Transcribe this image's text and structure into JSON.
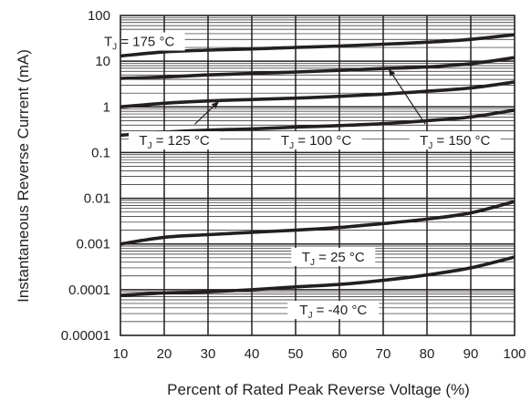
{
  "chart_data": {
    "type": "line",
    "title": "",
    "xlabel": "Percent of Rated Peak Reverse Voltage (%)",
    "ylabel": "Instantaneous Reverse Current (mA)",
    "xlim": [
      10,
      100
    ],
    "ylim": [
      1e-05,
      100
    ],
    "y_scale": "log",
    "grid": true,
    "x_ticks": [
      "10",
      "20",
      "30",
      "40",
      "50",
      "60",
      "70",
      "80",
      "90",
      "100"
    ],
    "y_ticks": [
      "0.00001",
      "0.0001",
      "0.001",
      "0.01",
      "0.1",
      "1",
      "10",
      "100"
    ],
    "x": [
      10,
      20,
      30,
      40,
      50,
      60,
      70,
      80,
      90,
      100
    ],
    "series": [
      {
        "label_main": "T",
        "label_sub": "J",
        "label_rest": " = 175 °C",
        "values": [
          13,
          16,
          17.5,
          18.5,
          20,
          21.5,
          23.5,
          26,
          30,
          38
        ]
      },
      {
        "label_main": "T",
        "label_sub": "J",
        "label_rest": " = 150 °C",
        "values": [
          4.2,
          4.5,
          5,
          5.4,
          5.8,
          6.3,
          6.9,
          7.5,
          8.8,
          12
        ]
      },
      {
        "label_main": "T",
        "label_sub": "J",
        "label_rest": " = 125 °C",
        "values": [
          1.0,
          1.2,
          1.35,
          1.45,
          1.55,
          1.7,
          1.9,
          2.2,
          2.6,
          3.5
        ]
      },
      {
        "label_main": "T",
        "label_sub": "J",
        "label_rest": " = 100 °C",
        "values": [
          0.24,
          0.28,
          0.31,
          0.33,
          0.36,
          0.39,
          0.43,
          0.5,
          0.6,
          0.85
        ]
      },
      {
        "label_main": "T",
        "label_sub": "J",
        "label_rest": " = 25 °C",
        "values": [
          0.001,
          0.0014,
          0.0016,
          0.0018,
          0.002,
          0.0023,
          0.0028,
          0.0035,
          0.0048,
          0.0085
        ]
      },
      {
        "label_main": "T",
        "label_sub": "J",
        "label_rest": " = -40 °C",
        "values": [
          7.5e-05,
          8.5e-05,
          9e-05,
          0.0001,
          0.000115,
          0.00013,
          0.00016,
          0.00021,
          0.0003,
          0.00052
        ]
      }
    ]
  }
}
